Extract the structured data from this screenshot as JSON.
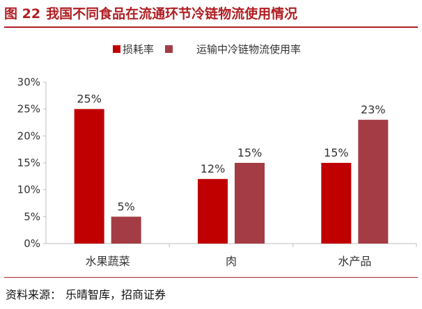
{
  "figure": {
    "number": "图 22",
    "title": "我国不同食品在流通环节冷链物流使用情况"
  },
  "source": {
    "label": "资料来源：",
    "text": "乐晴智库，招商证券"
  },
  "colors": {
    "title": "#b01e23",
    "series_loss": "#c00000",
    "series_coldchain": "#a33c45",
    "axis": "#bfbfbf",
    "text": "#333333"
  },
  "chart_data": {
    "type": "bar",
    "categories": [
      "水果蔬菜",
      "肉",
      "水产品"
    ],
    "series": [
      {
        "name": "损耗率",
        "values": [
          25,
          12,
          15
        ]
      },
      {
        "name": "运输中冷链物流使用率",
        "values": [
          5,
          15,
          23
        ]
      }
    ],
    "data_labels": [
      [
        "25%",
        "12%",
        "15%"
      ],
      [
        "5%",
        "15%",
        "23%"
      ]
    ],
    "yticks": [
      "0%",
      "5%",
      "10%",
      "15%",
      "20%",
      "25%",
      "30%"
    ],
    "ylim": [
      0,
      30
    ],
    "grid": false,
    "legend": "top-center"
  }
}
